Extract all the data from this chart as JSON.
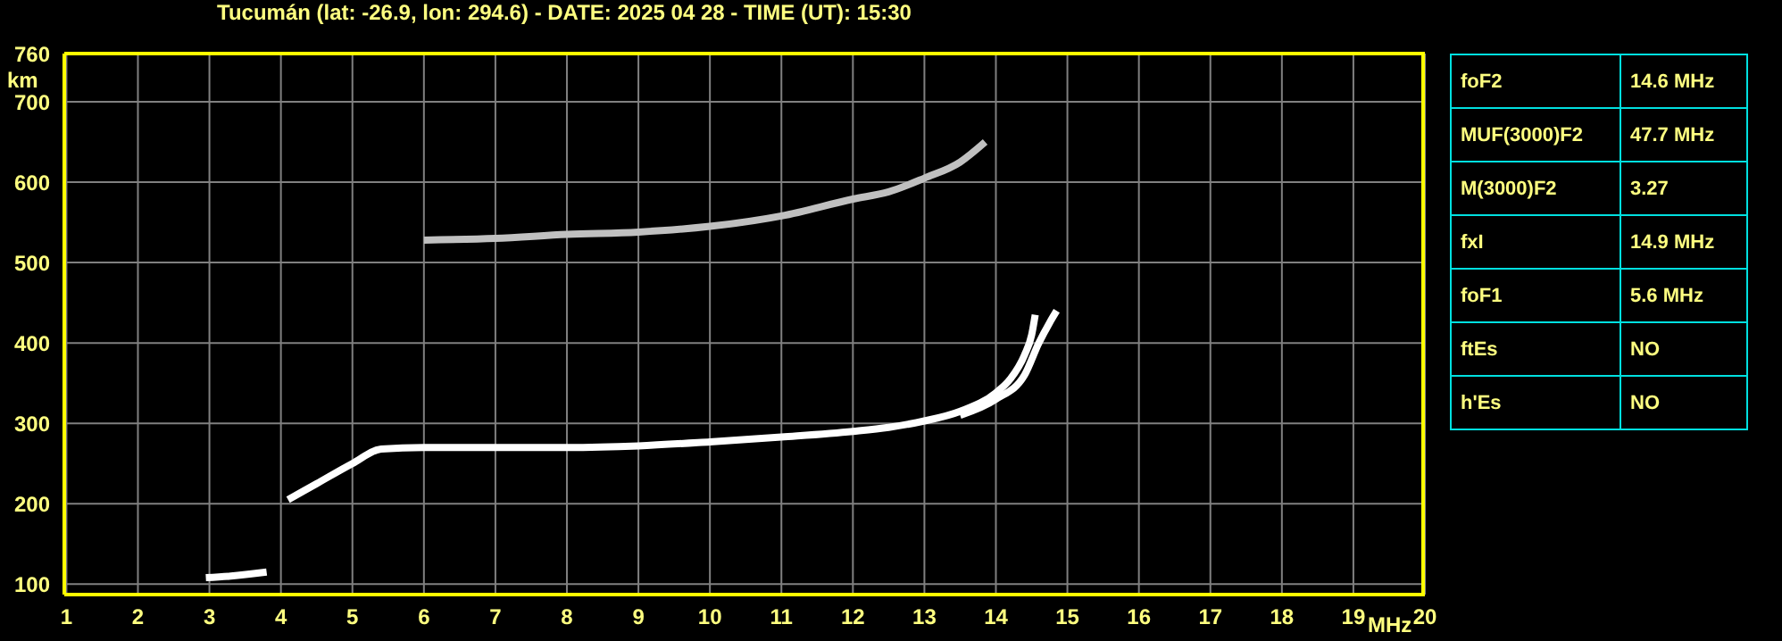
{
  "chart_data": [
    {
      "type": "line",
      "title": "Tucumán (lat: -26.9, lon: 294.6) - DATE: 2025 04 28 - TIME (UT): 15:30",
      "xlabel": "MHz",
      "ylabel": "km",
      "xlim": [
        0.97,
        20
      ],
      "ylim": [
        87,
        760
      ],
      "xticks": [
        1,
        2,
        3,
        4,
        5,
        6,
        7,
        8,
        9,
        10,
        11,
        12,
        13,
        14,
        15,
        16,
        17,
        18,
        19,
        20
      ],
      "yticks": [
        100,
        200,
        300,
        400,
        500,
        600,
        700,
        760
      ],
      "grid": true,
      "marker": "none",
      "line_style": "solid",
      "series": [
        {
          "color": "#ffffff",
          "x": [
            4.1,
            4.5,
            5.0,
            5.4,
            6.0,
            7.0,
            8.0,
            9.0,
            10.0,
            11.0,
            12.0,
            12.5,
            13.0,
            13.5,
            14.0,
            14.2,
            14.4,
            14.5,
            14.55
          ],
          "values": [
            205,
            225,
            250,
            268,
            270,
            270,
            270,
            272,
            277,
            283,
            290,
            295,
            303,
            315,
            338,
            355,
            385,
            410,
            435
          ]
        },
        {
          "color": "#ffffff",
          "x": [
            13.5,
            14.0,
            14.4,
            14.6,
            14.75,
            14.85
          ],
          "values": [
            310,
            330,
            360,
            400,
            425,
            440
          ]
        },
        {
          "color": "#ffffff",
          "x": [
            2.95,
            3.3,
            3.8
          ],
          "values": [
            108,
            110,
            115
          ]
        },
        {
          "color": "#c0c0c0",
          "x": [
            6.0,
            7.0,
            8.0,
            9.0,
            10.0,
            11.0,
            12.0,
            12.5,
            13.0,
            13.5,
            13.85
          ],
          "values": [
            528,
            530,
            535,
            538,
            545,
            558,
            579,
            588,
            605,
            625,
            650
          ]
        }
      ]
    },
    {
      "type": "other",
      "annotations": [
        "foF2",
        "14.6 MHz",
        "MUF(3000)F2",
        "47.7 MHz",
        "M(3000)F2",
        "3.27",
        "fxI",
        "14.9 MHz",
        "foF1",
        "5.6 MHz",
        "ftEs",
        "NO",
        "h'Es",
        "NO"
      ]
    }
  ]
}
